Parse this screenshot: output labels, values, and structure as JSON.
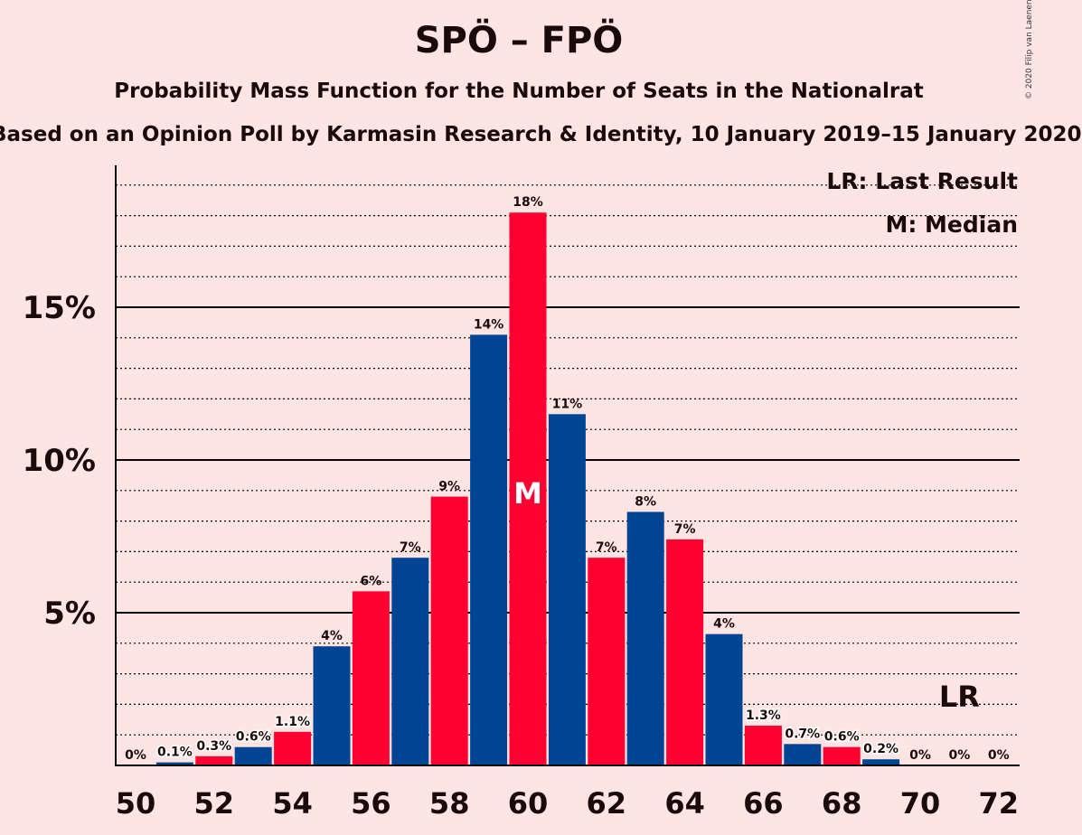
{
  "chart_data": {
    "type": "bar",
    "title": "SPÖ – FPÖ",
    "subtitle": "Probability Mass Function for the Number of Seats in the Nationalrat",
    "source": "Based on an Opinion Poll by Karmasin Research & Identity, 10 January 2019–15 January 2020",
    "copyright": "© 2020 Filip van Laenen",
    "x": [
      50,
      51,
      52,
      53,
      54,
      55,
      56,
      57,
      58,
      59,
      60,
      61,
      62,
      63,
      64,
      65,
      66,
      67,
      68,
      69,
      70,
      71,
      72
    ],
    "values": [
      0,
      0.1,
      0.3,
      0.6,
      1.1,
      3.9,
      5.7,
      6.8,
      8.8,
      14.1,
      18.1,
      11.5,
      6.8,
      8.3,
      7.4,
      4.3,
      1.3,
      0.7,
      0.6,
      0.2,
      0,
      0,
      0
    ],
    "labels": [
      "0%",
      "0.1%",
      "0.3%",
      "0.6%",
      "1.1%",
      "4%",
      "6%",
      "7%",
      "9%",
      "14%",
      "18%",
      "11%",
      "7%",
      "8%",
      "7%",
      "4%",
      "1.3%",
      "0.7%",
      "0.6%",
      "0.2%",
      "0%",
      "0%",
      "0%"
    ],
    "x_tick_labels": [
      "50",
      "52",
      "54",
      "56",
      "58",
      "60",
      "62",
      "64",
      "66",
      "68",
      "70",
      "72"
    ],
    "y_ticks": [
      5,
      10,
      15
    ],
    "y_tick_labels": [
      "5%",
      "10%",
      "15%"
    ],
    "ylim": [
      0,
      19.5
    ],
    "minor_grid_step": 1,
    "median": 60,
    "median_marker": "M",
    "last_result": 71,
    "last_result_marker": "LR",
    "legend": [
      "LR: Last Result",
      "M: Median"
    ],
    "legend_position": "top-right",
    "colors": {
      "blue": "#004494",
      "red": "#ff0030",
      "background": "#ffe4e4",
      "text": "#1a0a0a"
    }
  }
}
